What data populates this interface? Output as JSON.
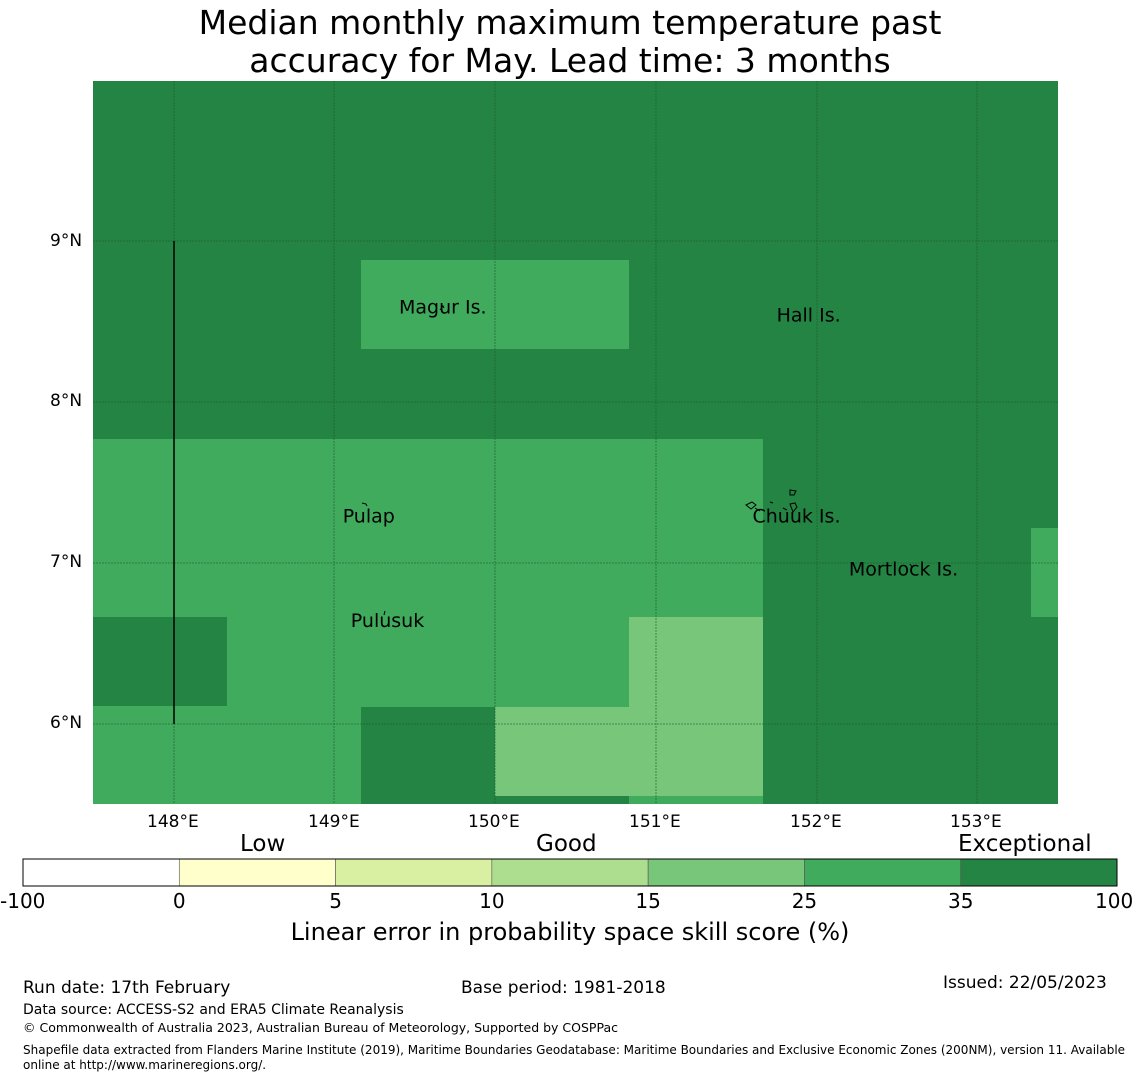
{
  "title": {
    "line1": "Median monthly maximum temperature past",
    "line2": "accuracy for May. Lead time: 3 months"
  },
  "map": {
    "lat_labels": [
      "9°N",
      "8°N",
      "7°N",
      "6°N"
    ],
    "lon_labels": [
      "148°E",
      "149°E",
      "150°E",
      "151°E",
      "152°E",
      "153°E"
    ],
    "places": [
      {
        "name": "Magur Is.",
        "lon": 149.4,
        "lat": 8.55
      },
      {
        "name": "Hall Is.",
        "lon": 151.75,
        "lat": 8.5
      },
      {
        "name": "Pulap",
        "lon": 149.05,
        "lat": 7.25
      },
      {
        "name": "Chuuk Is.",
        "lon": 151.6,
        "lat": 7.25
      },
      {
        "name": "Mortlock Is.",
        "lon": 152.2,
        "lat": 6.92
      },
      {
        "name": "Pulusuk",
        "lon": 149.1,
        "lat": 6.6
      }
    ],
    "colors": {
      "exceptional": "#238443",
      "very_good": "#41ab5d",
      "good": "#78c679",
      "gridline": "#1a5a2e"
    }
  },
  "colorbar": {
    "category_labels": [
      "Low",
      "Good",
      "Exceptional"
    ],
    "ticks": [
      "-100",
      "0",
      "5",
      "10",
      "15",
      "25",
      "35",
      "100"
    ],
    "colors": [
      "#ffffff",
      "#ffffcc",
      "#d9f0a3",
      "#addd8e",
      "#78c679",
      "#41ab5d",
      "#238443"
    ],
    "title": "Linear error in probability space skill score (%)"
  },
  "footer": {
    "run_date": "Run date: 17th February",
    "base_period": "Base period: 1981-2018",
    "issued": "Issued: 22/05/2023",
    "data_source": "Data source: ACCESS-S2 and ERA5 Climate Reanalysis",
    "copyright": "© Commonwealth of Australia 2023, Australian Bureau of Meteorology, Supported by COSPPac",
    "shapefile_line1": "Shapefile data extracted from Flanders Marine Institute (2019), Maritime Boundaries Geodatabase: Maritime Boundaries and Exclusive Economic Zones (200NM), version 11. Available",
    "shapefile_line2": "online at http://www.marineregions.org/."
  }
}
